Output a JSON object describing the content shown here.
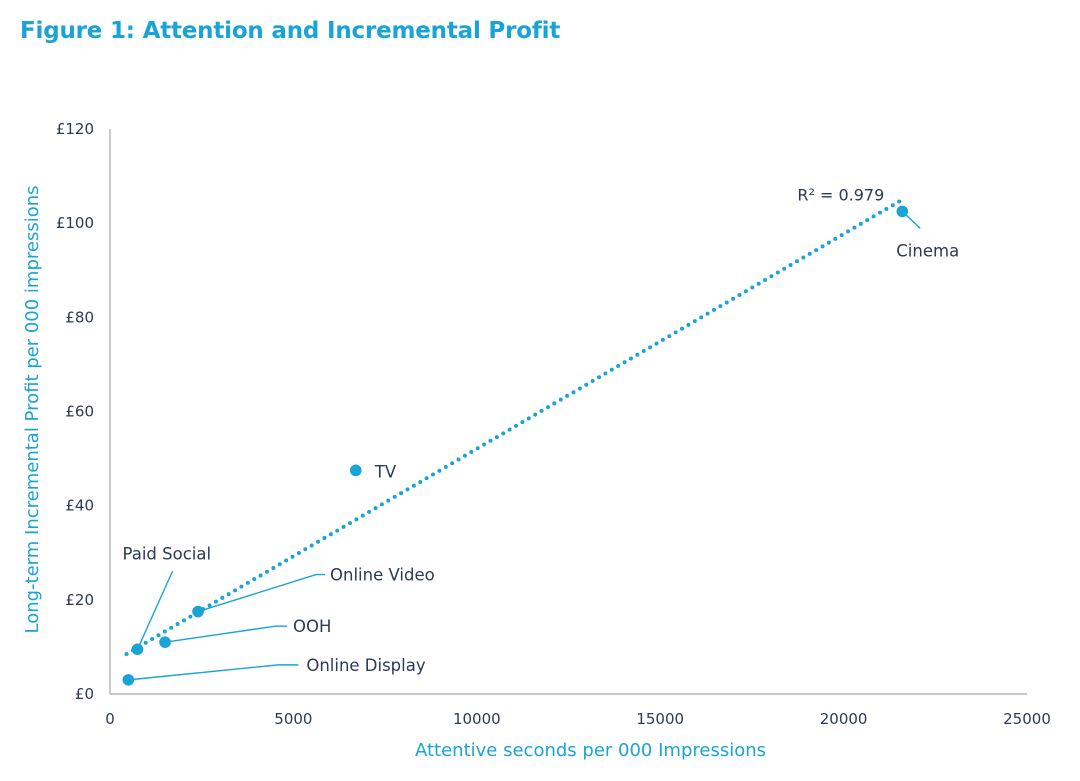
{
  "title": "Figure 1: Attention and Incremental Profit",
  "colors": {
    "accent": "#1aa3d6",
    "text": "#2b3a55",
    "axis": "#a8a8a8"
  },
  "chart_data": {
    "type": "scatter",
    "xlabel": "Attentive seconds per 000 Impressions",
    "ylabel": "Long-term Incremental Profit per 000 impressions",
    "xlim": [
      0,
      25000
    ],
    "ylim": [
      0,
      120
    ],
    "xticks": [
      0,
      5000,
      10000,
      15000,
      20000,
      25000
    ],
    "xtick_labels": [
      "0",
      "5000",
      "10000",
      "15000",
      "20000",
      "25000"
    ],
    "yticks": [
      0,
      20,
      40,
      60,
      80,
      100,
      120
    ],
    "ytick_labels": [
      "£0",
      "£20",
      "£40",
      "£60",
      "£80",
      "£100",
      "£120"
    ],
    "grid": false,
    "points": [
      {
        "label": "Online Display",
        "x": 500,
        "y": 3
      },
      {
        "label": "Paid Social",
        "x": 750,
        "y": 9.5
      },
      {
        "label": "OOH",
        "x": 1500,
        "y": 11
      },
      {
        "label": "Online Video",
        "x": 2400,
        "y": 17.5
      },
      {
        "label": "TV",
        "x": 6700,
        "y": 47.5
      },
      {
        "label": "Cinema",
        "x": 21600,
        "y": 102.5
      }
    ],
    "trendline": {
      "type": "linear",
      "style": "dotted",
      "x_start": 450,
      "x_end": 21600,
      "y_start": 8.5,
      "y_end": 105,
      "r_squared_label": "R² = 0.979"
    }
  }
}
